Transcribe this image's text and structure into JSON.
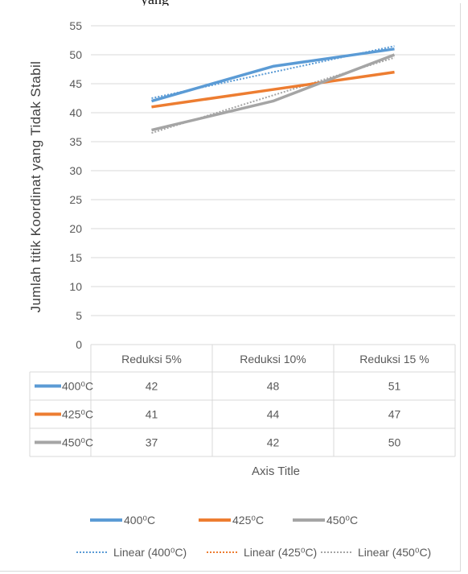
{
  "snippet_text": "yang",
  "chart_data": {
    "type": "line",
    "title": "",
    "xlabel": "Axis Title",
    "ylabel": "Jumlah titik Koordinat yang Tidak Stabil",
    "categories": [
      "Reduksi 5%",
      "Reduksi 10%",
      "Reduksi 15 %"
    ],
    "ylim": [
      0,
      55
    ],
    "yticks": [
      "0",
      "5",
      "10",
      "15",
      "20",
      "25",
      "30",
      "35",
      "40",
      "45",
      "50",
      "55"
    ],
    "grid": true,
    "legend_position": "bottom",
    "series": [
      {
        "name": "400⁰C",
        "values": [
          42,
          48,
          51
        ],
        "color": "#5b9bd5"
      },
      {
        "name": "425⁰C",
        "values": [
          41,
          44,
          47
        ],
        "color": "#ed7d31"
      },
      {
        "name": "450⁰C",
        "values": [
          37,
          42,
          50
        ],
        "color": "#a5a5a5"
      }
    ],
    "trendlines": [
      {
        "name": "Linear (400⁰C)",
        "color": "#5b9bd5"
      },
      {
        "name": "Linear (425⁰C)",
        "color": "#ed7d31"
      },
      {
        "name": "Linear (450⁰C)",
        "color": "#a5a5a5"
      }
    ]
  }
}
